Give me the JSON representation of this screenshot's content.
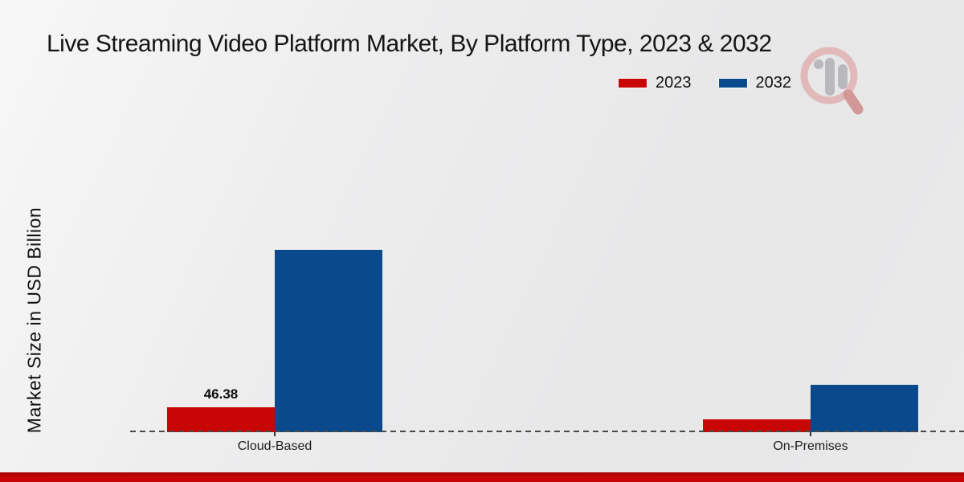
{
  "title": "Live Streaming Video Platform Market, By Platform Type, 2023 & 2032",
  "ylabel": "Market Size in USD Billion",
  "legend": {
    "position": "top-right",
    "items": [
      {
        "label": "2023",
        "color": "#c80605"
      },
      {
        "label": "2032",
        "color": "#0a4a8c"
      }
    ]
  },
  "watermark": {
    "name": "market-research-magnifier-logo"
  },
  "footer": {
    "accent_bar_color": "#c40404"
  },
  "colors": {
    "background": "#ebebec",
    "axis_dash": "#4a4a4a",
    "series_2023": "#c80605",
    "series_2032": "#0a4a8c"
  },
  "chart_data": {
    "type": "bar",
    "title": "Live Streaming Video Platform Market, By Platform Type, 2023 & 2032",
    "xlabel": "",
    "ylabel": "Market Size in USD Billion",
    "categories": [
      "Cloud-Based",
      "On-Premises"
    ],
    "series": [
      {
        "name": "2023",
        "color": "#c80605",
        "values": [
          46.38,
          24
        ]
      },
      {
        "name": "2032",
        "color": "#0a4a8c",
        "values": [
          339.7,
          88.3
        ]
      }
    ],
    "data_labels": {
      "cloud_based_2023": "46.38"
    },
    "ylim": [
      0,
      570
    ],
    "grid": false,
    "y_axis_ticks_visible": false,
    "legend_position": "top-right",
    "baseline_style": "dashed"
  }
}
